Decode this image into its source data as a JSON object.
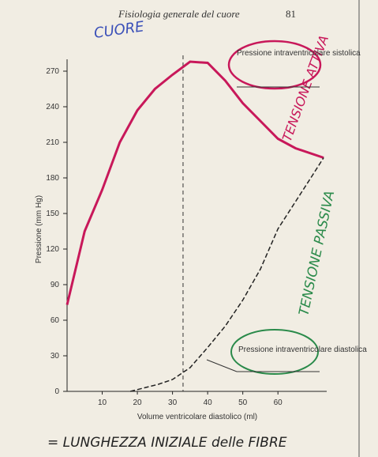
{
  "header": "Fisiologia generale del cuore",
  "page_number": "81",
  "chart_data": {
    "type": "line",
    "x_label": "Volume ventricolare diastolico (ml)",
    "y_label": "Pressione (mm Hg)",
    "xlim": [
      0,
      75
    ],
    "ylim": [
      0,
      280
    ],
    "xticks": [
      10,
      20,
      30,
      40,
      50,
      60
    ],
    "yticks": [
      0,
      30,
      60,
      90,
      120,
      150,
      180,
      210,
      240,
      270
    ],
    "vline": 33,
    "series": [
      {
        "name": "Pressione intraventricolare sistolica",
        "color": "#c8185a",
        "x": [
          0,
          5,
          10,
          15,
          20,
          25,
          30,
          35,
          40,
          45,
          50,
          55,
          60,
          65,
          73
        ],
        "values": [
          73,
          135,
          170,
          210,
          237,
          255,
          267,
          278,
          277,
          262,
          243,
          228,
          213,
          205,
          197
        ]
      },
      {
        "name": "Pressione intraventricolare diastolica",
        "color": "#222222",
        "x": [
          18,
          22,
          26,
          30,
          35,
          40,
          45,
          50,
          55,
          60,
          65,
          70,
          73
        ],
        "values": [
          0,
          3,
          6,
          10,
          20,
          37,
          55,
          77,
          103,
          137,
          160,
          183,
          197
        ]
      }
    ],
    "annotations": [
      "CUORE",
      "TENSIONE ATTIVA",
      "TENSIONE PASSIVA",
      "= LUNGHEZZA INIZIALE delle FIBRE"
    ]
  }
}
